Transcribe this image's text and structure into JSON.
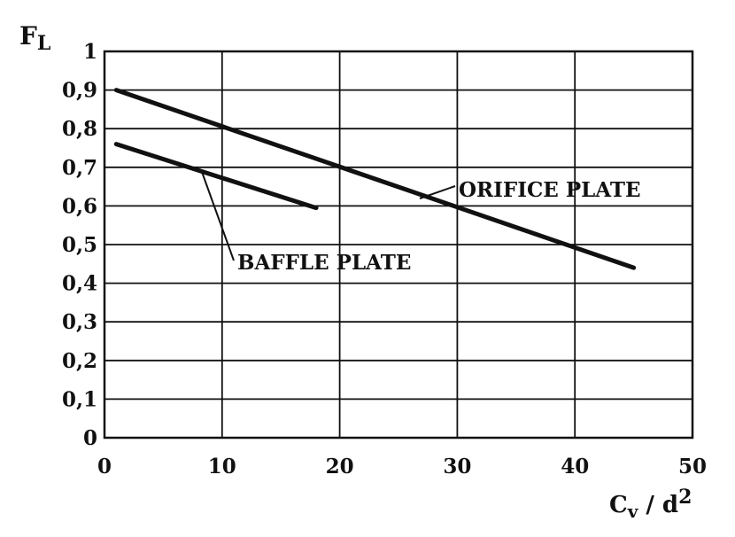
{
  "chart_data": {
    "type": "line",
    "xlim": [
      0,
      50
    ],
    "ylim": [
      0,
      1
    ],
    "x_ticks": [
      0,
      10,
      20,
      30,
      40,
      50
    ],
    "x_tick_labels": [
      "0",
      "10",
      "20",
      "30",
      "40",
      "50"
    ],
    "y_ticks": [
      0,
      0.1,
      0.2,
      0.3,
      0.4,
      0.5,
      0.6,
      0.7,
      0.8,
      0.9,
      1
    ],
    "y_tick_labels": [
      "0",
      "0,1",
      "0,2",
      "0,3",
      "0,4",
      "0,5",
      "0,6",
      "0,7",
      "0,8",
      "0,9",
      "1"
    ],
    "grid": true,
    "xlabel": {
      "main": "C",
      "sub": "v",
      "mid": " / d",
      "sup": "2"
    },
    "ylabel": {
      "main": "F",
      "sub": "L"
    },
    "series": [
      {
        "name": "ORIFICE PLATE",
        "x": [
          1,
          45
        ],
        "y": [
          0.9,
          0.44
        ]
      },
      {
        "name": "BAFFLE PLATE",
        "x": [
          1,
          18
        ],
        "y": [
          0.76,
          0.595
        ]
      }
    ]
  }
}
